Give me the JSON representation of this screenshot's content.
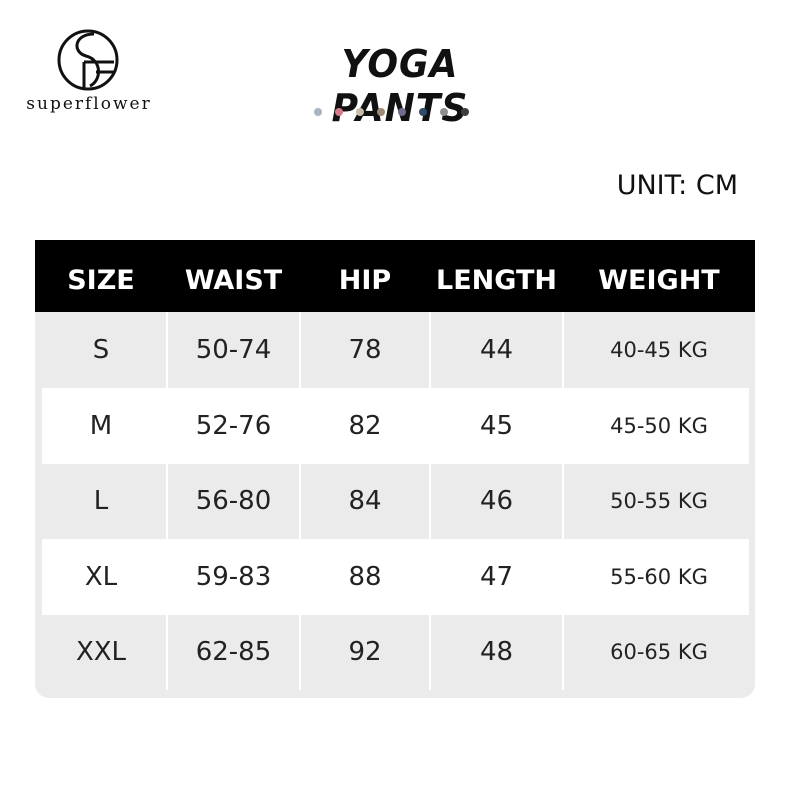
{
  "brand": {
    "name": "superflower",
    "logo_text": "SF"
  },
  "title": "YOGA PANTS",
  "color_swatches": [
    "#a9b3c3",
    "#d27b8c",
    "#c9bcaa",
    "#a08b78",
    "#6f6d8f",
    "#2f4a6b",
    "#8f8f8f",
    "#3d3d3d"
  ],
  "unit": "UNIT: CM",
  "table": {
    "headers": [
      "SIZE",
      "WAIST",
      "HIP",
      "LENGTH",
      "WEIGHT"
    ],
    "rows": [
      [
        "S",
        "50-74",
        "78",
        "44",
        "40-45 KG"
      ],
      [
        "M",
        "52-76",
        "82",
        "45",
        "45-50 KG"
      ],
      [
        "L",
        "56-80",
        "84",
        "46",
        "50-55 KG"
      ],
      [
        "XL",
        "59-83",
        "88",
        "47",
        "55-60 KG"
      ],
      [
        "XXL",
        "62-85",
        "92",
        "48",
        "60-65 KG"
      ]
    ]
  }
}
